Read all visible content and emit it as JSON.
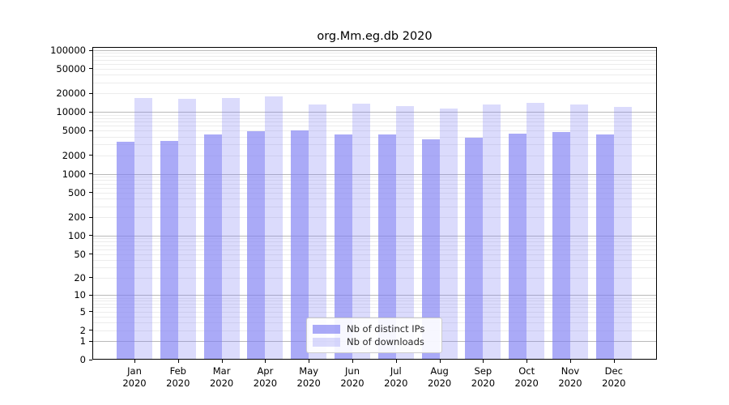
{
  "title": "org.Mm.eg.db 2020",
  "chart_data": {
    "type": "bar",
    "title": "org.Mm.eg.db 2020",
    "scale": "log1p",
    "ylim": [
      0,
      100000
    ],
    "grid": "horizontal",
    "legend_position": "lower-center-inside",
    "months": [
      "Jan",
      "Feb",
      "Mar",
      "Apr",
      "May",
      "Jun",
      "Jul",
      "Aug",
      "Sep",
      "Oct",
      "Nov",
      "Dec"
    ],
    "year": "2020",
    "categories": [
      "Jan 2020",
      "Feb 2020",
      "Mar 2020",
      "Apr 2020",
      "May 2020",
      "Jun 2020",
      "Jul 2020",
      "Aug 2020",
      "Sep 2020",
      "Oct 2020",
      "Nov 2020",
      "Dec 2020"
    ],
    "y_ticks": [
      0,
      1,
      2,
      5,
      10,
      20,
      50,
      100,
      200,
      500,
      1000,
      2000,
      5000,
      10000,
      20000,
      50000,
      100000
    ],
    "series": [
      {
        "name": "Nb of distinct IPs",
        "color": "rgba(126,126,243,0.66)",
        "values": [
          3300,
          3400,
          4300,
          4900,
          5100,
          4400,
          4300,
          3600,
          3900,
          4500,
          4700,
          4300
        ]
      },
      {
        "name": "Nb of downloads",
        "color": "rgba(126,126,243,0.28)",
        "values": [
          17000,
          16500,
          16800,
          18100,
          13300,
          13800,
          12500,
          11300,
          13300,
          14000,
          13300,
          12200
        ]
      }
    ],
    "colors": {
      "bar_distinct_ips": "#aaaaf0",
      "bar_downloads": "#dbdbfa",
      "grid_major": "#b9b9b9",
      "grid_minor": "#ececec",
      "axis": "#000000"
    }
  }
}
